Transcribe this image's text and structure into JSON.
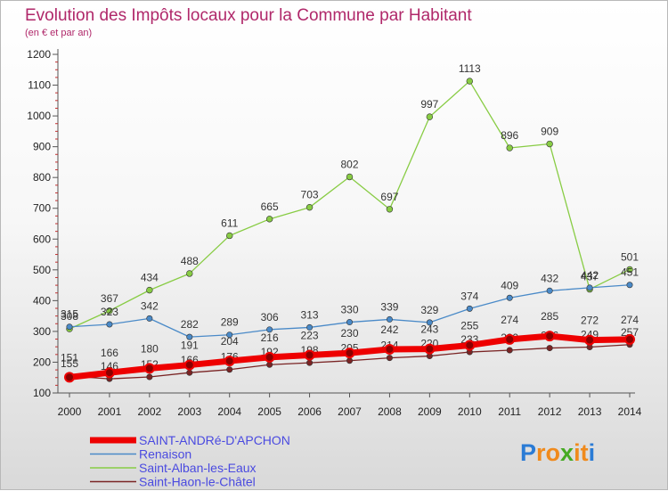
{
  "chart_data": {
    "type": "line",
    "title": "Evolution des Impôts locaux pour la Commune par Habitant",
    "subtitle": "(en € et par an)",
    "xlabel": "",
    "ylabel": "",
    "x": [
      "2000",
      "2001",
      "2002",
      "2003",
      "2004",
      "2005",
      "2006",
      "2007",
      "2008",
      "2009",
      "2010",
      "2011",
      "2012",
      "2013",
      "2014"
    ],
    "ylim": [
      100,
      1200
    ],
    "yticks": [
      100,
      200,
      300,
      400,
      500,
      600,
      700,
      800,
      900,
      1000,
      1100,
      1200
    ],
    "grid": false,
    "legend_position": "bottom-left",
    "series": [
      {
        "name": "SAINT-ANDRé-D'APCHON",
        "color": "#ee0000",
        "values": [
          151,
          166,
          180,
          191,
          204,
          216,
          223,
          230,
          242,
          243,
          255,
          274,
          285,
          272,
          274
        ],
        "labels": [
          "151",
          "166",
          "180",
          "191",
          "204",
          "216",
          "223",
          "230",
          "242",
          "243",
          "255",
          "274",
          "285",
          "272",
          "274"
        ]
      },
      {
        "name": "Renaison",
        "color": "#4a8ac8",
        "values": [
          315,
          323,
          342,
          282,
          289,
          306,
          313,
          330,
          339,
          329,
          374,
          409,
          432,
          442,
          451
        ],
        "labels": [
          "315",
          "323",
          "342",
          "282",
          "289",
          "306",
          "313",
          "330",
          "339",
          "329",
          "374",
          "409",
          "432",
          "442",
          "451"
        ]
      },
      {
        "name": "Saint-Alban-les-Eaux",
        "color": "#88cc44",
        "values": [
          308,
          367,
          434,
          488,
          611,
          665,
          703,
          802,
          697,
          997,
          1113,
          896,
          909,
          437,
          501
        ],
        "labels": [
          "308",
          "367",
          "434",
          "488",
          "611",
          "665",
          "703",
          "802",
          "697",
          "997",
          "1113",
          "896",
          "909",
          "437",
          "501"
        ]
      },
      {
        "name": "Saint-Haon-le-Châtel",
        "color": "#7a2424",
        "values": [
          155,
          146,
          152,
          166,
          176,
          192,
          198,
          205,
          214,
          220,
          233,
          239,
          246,
          249,
          257
        ],
        "labels": [
          "155",
          "146",
          "152",
          "166",
          "176",
          "192",
          "198",
          "205",
          "214",
          "220",
          "233",
          "239",
          "246",
          "249",
          "257"
        ]
      }
    ]
  },
  "logo": {
    "letters": [
      "P",
      "r",
      "o",
      "x",
      "i",
      "t",
      "i"
    ],
    "colors": [
      "#2a7bd5",
      "#f08a1c",
      "#f08a1c",
      "#44aa22",
      "#f08a1c",
      "#f08a1c",
      "#2a7bd5"
    ]
  }
}
